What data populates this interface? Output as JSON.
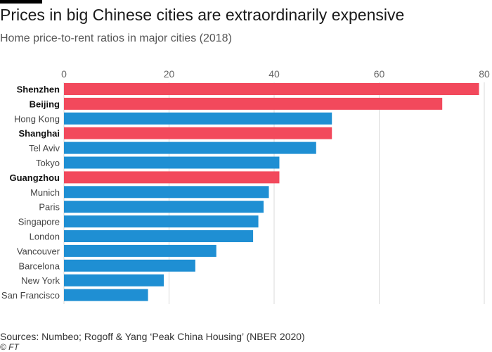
{
  "title": "Prices in big Chinese cities are extraordinarily expensive",
  "subtitle": "Home price-to-rent ratios in major cities (2018)",
  "sources": "Sources: Numbeo; Rogoff & Yang ‘Peak China Housing’ (NBER 2020)",
  "credit": "© FT",
  "colors": {
    "chinese_city": "#f2495c",
    "other_city": "#1f8fd3",
    "grid": "#d9d9d9",
    "tick_label": "#666666"
  },
  "chart_data": {
    "type": "bar",
    "orientation": "horizontal",
    "xlim": [
      0,
      80
    ],
    "ticks": [
      0,
      20,
      40,
      60,
      80
    ],
    "grid": true,
    "categories": [
      "Shenzhen",
      "Beijing",
      "Hong Kong",
      "Shanghai",
      "Tel Aviv",
      "Tokyo",
      "Guangzhou",
      "Munich",
      "Paris",
      "Singapore",
      "London",
      "Vancouver",
      "Barcelona",
      "New York",
      "San Francisco"
    ],
    "values": [
      79,
      72,
      51,
      51,
      48,
      41,
      41,
      39,
      38,
      37,
      36,
      29,
      25,
      19,
      16
    ],
    "highlighted": [
      true,
      true,
      false,
      true,
      false,
      false,
      true,
      false,
      false,
      false,
      false,
      false,
      false,
      false,
      false
    ]
  }
}
